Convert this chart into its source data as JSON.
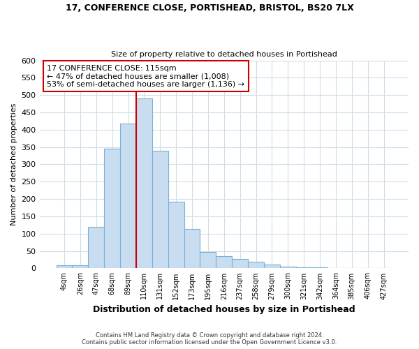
{
  "title": "17, CONFERENCE CLOSE, PORTISHEAD, BRISTOL, BS20 7LX",
  "subtitle": "Size of property relative to detached houses in Portishead",
  "xlabel": "Distribution of detached houses by size in Portishead",
  "ylabel": "Number of detached properties",
  "bar_labels": [
    "4sqm",
    "26sqm",
    "47sqm",
    "68sqm",
    "89sqm",
    "110sqm",
    "131sqm",
    "152sqm",
    "173sqm",
    "195sqm",
    "216sqm",
    "237sqm",
    "258sqm",
    "279sqm",
    "300sqm",
    "321sqm",
    "342sqm",
    "364sqm",
    "385sqm",
    "406sqm",
    "427sqm"
  ],
  "bar_values": [
    8,
    8,
    120,
    345,
    418,
    490,
    340,
    193,
    113,
    47,
    35,
    28,
    19,
    10,
    4,
    3,
    2,
    1,
    1,
    1,
    1
  ],
  "bar_color": "#c8ddf0",
  "bar_edge_color": "#7bafd4",
  "vline_index": 5,
  "annotation_title": "17 CONFERENCE CLOSE: 115sqm",
  "annotation_line1": "← 47% of detached houses are smaller (1,008)",
  "annotation_line2": "53% of semi-detached houses are larger (1,136) →",
  "vline_color": "#cc0000",
  "ylim": [
    0,
    600
  ],
  "yticks": [
    0,
    50,
    100,
    150,
    200,
    250,
    300,
    350,
    400,
    450,
    500,
    550,
    600
  ],
  "footer_line1": "Contains HM Land Registry data © Crown copyright and database right 2024.",
  "footer_line2": "Contains public sector information licensed under the Open Government Licence v3.0.",
  "bg_color": "#ffffff",
  "grid_color": "#d0dce8"
}
